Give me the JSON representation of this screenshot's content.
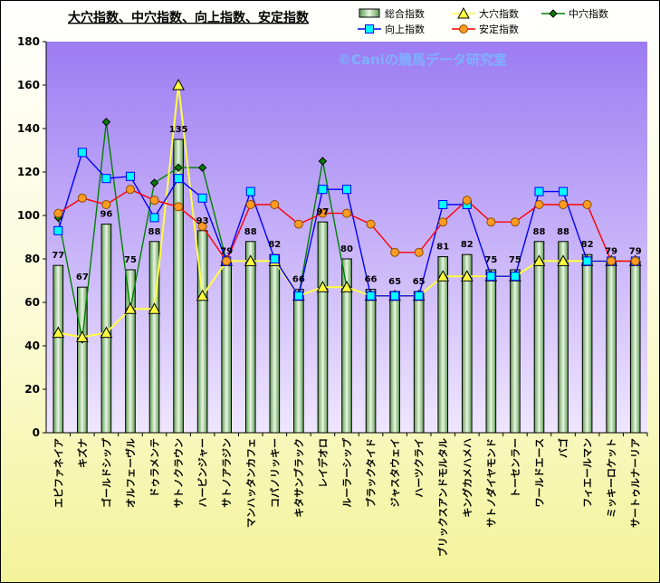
{
  "colors": {
    "plot_bg_top": "#9c7cf2",
    "plot_bg_bottom": "#f0e6ff",
    "bar_fill_center": "#e8f6e1",
    "bar_fill_edge": "#5f9c54",
    "line_daiketsu": "#ffff40",
    "line_chuketsu": "#008000",
    "line_kojo": "#0000ff",
    "line_antei": "#ff0000",
    "marker_kojo_fill": "#00ffff",
    "marker_antei_fill": "#ff9b21",
    "watermark": "#7db1ff"
  },
  "watermark": "©Caniの競馬データ研究室",
  "chart_data": {
    "type": "bar",
    "title": "大穴指数、中穴指数、向上指数、安定指数",
    "ylim": [
      0,
      180
    ],
    "y_ticks": [
      0,
      20,
      40,
      60,
      80,
      100,
      120,
      140,
      160,
      180
    ],
    "grid": false,
    "legend_position": "top-right",
    "categories": [
      "エピファネイア",
      "キズナ",
      "ゴールドシップ",
      "オルフェーヴル",
      "ドゥラメンテ",
      "サトノクラウン",
      "ハービンジャー",
      "サトノアラジン",
      "マンハッタンカフェ",
      "コパノリッキー",
      "キタサンブラック",
      "レイデオロ",
      "ルーラーシップ",
      "ブラックタイド",
      "ジャスタウェイ",
      "ハーツクライ",
      "ブリックスアンドモルタル",
      "キングカメハメハ",
      "サトノダイヤモンド",
      "トーセンラー",
      "ワールドエース",
      "バゴ",
      "フィエールマン",
      "ミッキーロケット",
      "サートゥルナーリア"
    ],
    "series": [
      {
        "name": "総合指数",
        "kind": "bar",
        "values": [
          77,
          67,
          96,
          75,
          88,
          135,
          93,
          79,
          88,
          82,
          66,
          97,
          80,
          66,
          65,
          65,
          81,
          82,
          75,
          75,
          88,
          88,
          82,
          79,
          79
        ]
      },
      {
        "name": "大穴指数",
        "kind": "line",
        "marker": "triangle",
        "values": [
          46,
          44,
          46,
          57,
          57,
          160,
          63,
          79,
          79,
          79,
          63,
          67,
          67,
          63,
          63,
          63,
          72,
          72,
          72,
          72,
          79,
          79,
          79,
          79,
          79
        ]
      },
      {
        "name": "中穴指数",
        "kind": "line",
        "marker": "diamond",
        "values": [
          99,
          43,
          143,
          57,
          115,
          122,
          122,
          79,
          79,
          79,
          63,
          125,
          67,
          63,
          63,
          63,
          72,
          72,
          72,
          72,
          79,
          79,
          79,
          79,
          79
        ]
      },
      {
        "name": "向上指数",
        "kind": "line",
        "marker": "square",
        "values": [
          93,
          129,
          117,
          118,
          99,
          117,
          108,
          79,
          111,
          80,
          63,
          112,
          112,
          63,
          63,
          63,
          105,
          105,
          72,
          72,
          111,
          111,
          79,
          79,
          79
        ]
      },
      {
        "name": "安定指数",
        "kind": "line",
        "marker": "circle",
        "values": [
          101,
          108,
          105,
          112,
          107,
          104,
          95,
          79,
          105,
          105,
          96,
          101,
          101,
          96,
          83,
          83,
          97,
          107,
          97,
          97,
          105,
          105,
          105,
          79,
          79
        ]
      }
    ],
    "bar_labels": [
      "77",
      "67",
      "96",
      "75",
      "88",
      "135",
      "93",
      "79",
      "88",
      "82",
      "66",
      "97",
      "80",
      "66",
      "65",
      "65",
      "81",
      "82",
      "75",
      "75",
      "88",
      "88",
      "82",
      "79",
      "79"
    ]
  }
}
